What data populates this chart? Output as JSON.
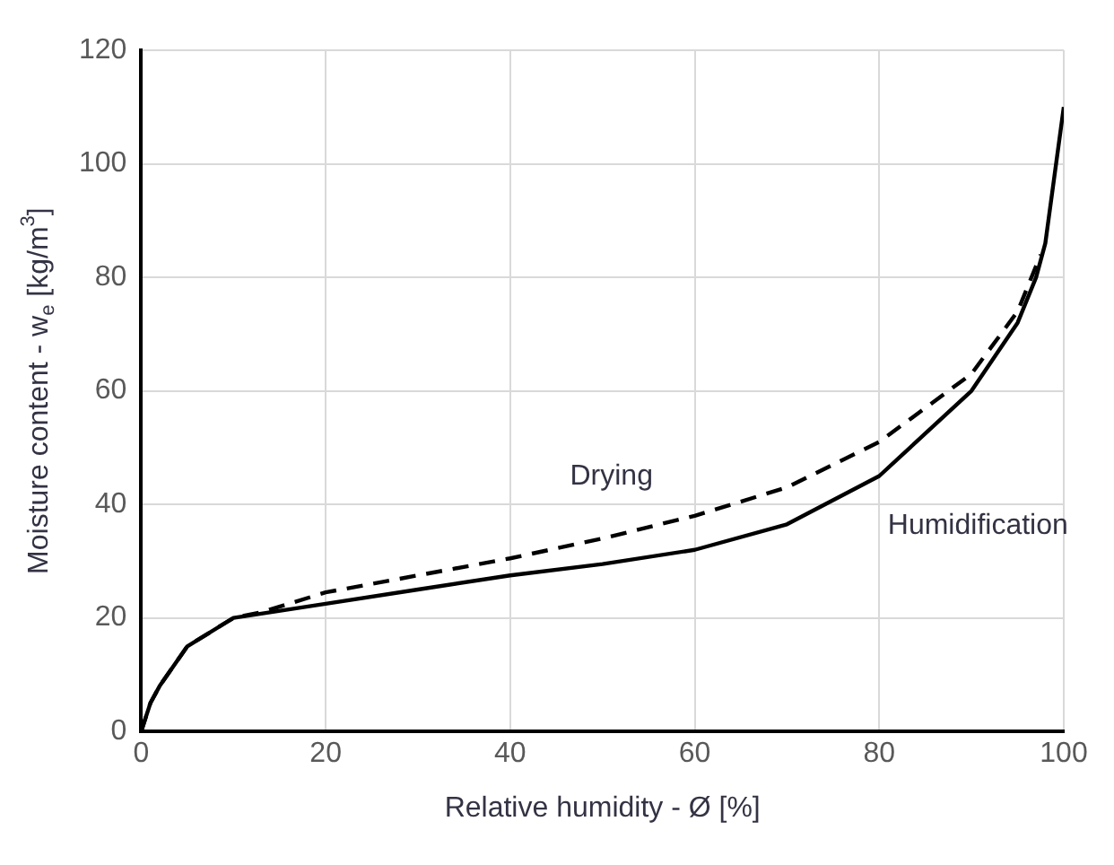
{
  "chart_data": {
    "type": "line",
    "xlabel": "Relative humidity - Ø [%]",
    "ylabel": "Moisture content - w$_{e}$ [kg/m$^{3}$]",
    "xlim": [
      0,
      100
    ],
    "xticks": [
      0,
      20,
      40,
      60,
      80,
      100
    ],
    "ylim": [
      0,
      120
    ],
    "yticks": [
      0,
      20,
      40,
      60,
      80,
      100,
      120
    ],
    "grid": true,
    "legend": false,
    "marker": "none",
    "series": [
      {
        "name": "Humidification",
        "color": "#000000",
        "line_style": "solid",
        "x": [
          0,
          1,
          2,
          5,
          10,
          20,
          30,
          40,
          50,
          60,
          70,
          80,
          90,
          95,
          97,
          98,
          99,
          100
        ],
        "values": [
          0,
          5,
          8,
          15,
          20,
          22.5,
          25,
          27.5,
          29.5,
          32,
          36.5,
          45,
          60,
          72,
          80,
          86,
          98,
          110
        ]
      },
      {
        "name": "Drying",
        "color": "#000000",
        "line_style": "dashed",
        "x": [
          0,
          1,
          2,
          5,
          10,
          13,
          20,
          30,
          40,
          50,
          60,
          70,
          80,
          90,
          95,
          97.5
        ],
        "values": [
          0,
          5,
          8,
          15,
          20,
          21,
          24.5,
          27.5,
          30.5,
          34,
          38,
          43,
          51,
          63,
          74,
          84
        ]
      }
    ]
  }
}
